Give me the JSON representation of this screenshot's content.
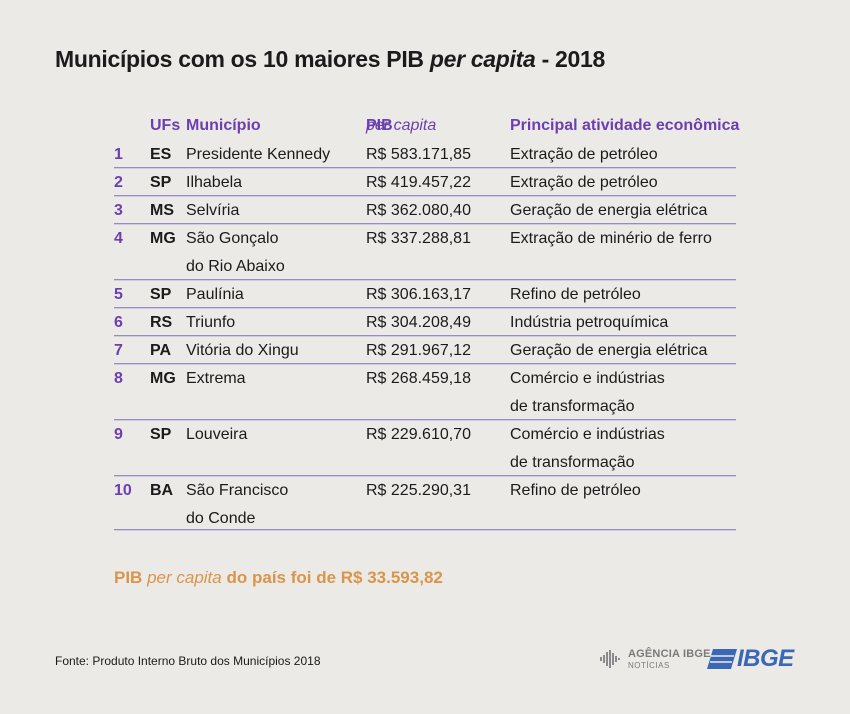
{
  "title": {
    "part1": "Municípios com os 10 maiores PIB",
    "part2": "per capita",
    "part3": "- 2018"
  },
  "header": {
    "uf": "UFs",
    "municipio": "Município",
    "pib": "PIB",
    "pib_italic": "per capita",
    "atividade": "Principal atividade econômica"
  },
  "rows": [
    {
      "rank": "1",
      "uf": "ES",
      "municipio": [
        "Presidente Kennedy"
      ],
      "pib": "R$ 583.171,85",
      "atividade": [
        "Extração de petróleo"
      ]
    },
    {
      "rank": "2",
      "uf": "SP",
      "municipio": [
        "Ilhabela"
      ],
      "pib": "R$ 419.457,22",
      "atividade": [
        "Extração de petróleo"
      ]
    },
    {
      "rank": "3",
      "uf": "MS",
      "municipio": [
        "Selvíria"
      ],
      "pib": "R$ 362.080,40",
      "atividade": [
        "Geração de energia elétrica"
      ]
    },
    {
      "rank": "4",
      "uf": "MG",
      "municipio": [
        "São Gonçalo",
        "do Rio Abaixo"
      ],
      "pib": "R$ 337.288,81",
      "atividade": [
        "Extração de minério de ferro"
      ]
    },
    {
      "rank": "5",
      "uf": "SP",
      "municipio": [
        "Paulínia"
      ],
      "pib": "R$ 306.163,17",
      "atividade": [
        "Refino de petróleo"
      ]
    },
    {
      "rank": "6",
      "uf": "RS",
      "municipio": [
        "Triunfo"
      ],
      "pib": "R$ 304.208,49",
      "atividade": [
        "Indústria petroquímica"
      ]
    },
    {
      "rank": "7",
      "uf": "PA",
      "municipio": [
        "Vitória do Xingu"
      ],
      "pib": "R$ 291.967,12",
      "atividade": [
        "Geração de energia elétrica"
      ]
    },
    {
      "rank": "8",
      "uf": "MG",
      "municipio": [
        "Extrema"
      ],
      "pib": "R$ 268.459,18",
      "atividade": [
        "Comércio e indústrias",
        "de transformação"
      ]
    },
    {
      "rank": "9",
      "uf": "SP",
      "municipio": [
        "Louveira"
      ],
      "pib": "R$ 229.610,70",
      "atividade": [
        "Comércio e indústrias",
        "de transformação"
      ]
    },
    {
      "rank": "10",
      "uf": "BA",
      "municipio": [
        "São Francisco",
        "do Conde"
      ],
      "pib": "R$ 225.290,31",
      "atividade": [
        "Refino de petróleo"
      ]
    }
  ],
  "national": {
    "part1": "PIB",
    "part2": "per capita",
    "part3": "do país foi de R$ 33.593,82"
  },
  "source": "Fonte: Produto Interno Bruto dos Municípios 2018",
  "logos": {
    "agencia_line1": "AGÊNCIA IBGE",
    "agencia_line2": "NOTÍCIAS",
    "ibge": "IBGE",
    "ibge_color": "#3a68b4"
  },
  "colors": {
    "accent_purple": "#6c3fb0",
    "accent_orange": "#d9954a",
    "background": "#eceae7"
  }
}
